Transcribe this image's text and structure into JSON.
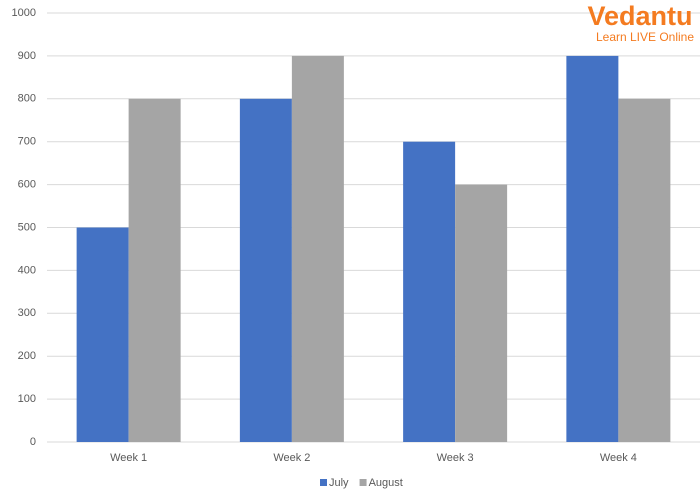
{
  "chart_data": {
    "type": "bar",
    "categories": [
      "Week 1",
      "Week 2",
      "Week 3",
      "Week 4"
    ],
    "series": [
      {
        "name": "July",
        "color": "#4472c4",
        "values": [
          500,
          800,
          700,
          900
        ]
      },
      {
        "name": "August",
        "color": "#a5a5a5",
        "values": [
          800,
          900,
          600,
          800
        ]
      }
    ],
    "ylim": [
      0,
      1000
    ],
    "yticks": [
      0,
      100,
      200,
      300,
      400,
      500,
      600,
      700,
      800,
      900,
      1000
    ],
    "grid": true,
    "legend": "bottom",
    "annotations": [
      "Vedantu",
      "Learn LIVE Online"
    ]
  }
}
